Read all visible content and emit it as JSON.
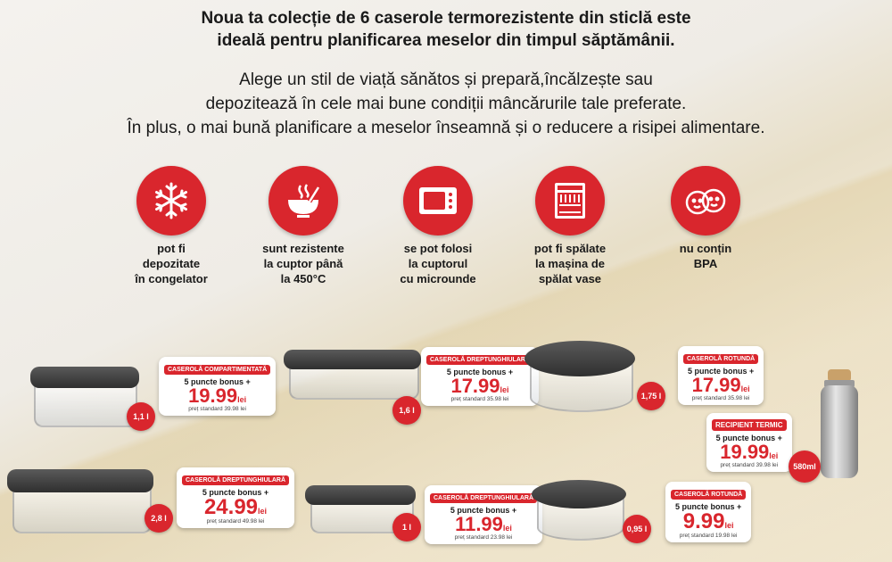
{
  "intro": {
    "line1": "Noua ta colecție de 6 caserole termorezistente din sticlă este",
    "line2": "ideală pentru planificarea meselor din timpul săptămânii.",
    "line3": "Alege un stil de viață sănătos și prepară,încălzește sau",
    "line4": "depozitează în cele mai bune condiții mâncărurile tale preferate.",
    "line5": "În plus, o mai bună planificare a meselor înseamnă și o reducere a risipei alimentare."
  },
  "features": [
    {
      "icon": "snowflake-icon",
      "l1": "pot fi",
      "l2": "depozitate",
      "l3": "în congelator"
    },
    {
      "icon": "bowl-icon",
      "l1": "sunt rezistente",
      "l2": "la cuptor până",
      "l3": "la 450°C"
    },
    {
      "icon": "microwave-icon",
      "l1": "se pot folosi",
      "l2": "la cuptorul",
      "l3": "cu microunde"
    },
    {
      "icon": "dishwasher-icon",
      "l1": "pot fi spălate",
      "l2": "la mașina de",
      "l3": "spălat vase"
    },
    {
      "icon": "baby-faces-icon",
      "l1": "nu conțin",
      "l2": "BPA",
      "l3": ""
    }
  ],
  "products": [
    {
      "name": "CASEROLĂ COMPARTIMENTATĂ",
      "bonus": "5 puncte bonus +",
      "price": "19.99",
      "cur": "lei",
      "std": "preț standard 39.98 lei",
      "vol": "1,1 l"
    },
    {
      "name": "CASEROLĂ DREPTUNGHIULARĂ",
      "bonus": "5 puncte bonus +",
      "price": "17.99",
      "cur": "lei",
      "std": "preț standard 35.98 lei",
      "vol": "1,6 l"
    },
    {
      "name": "CASEROLĂ ROTUNDĂ",
      "bonus": "5 puncte bonus +",
      "price": "17.99",
      "cur": "lei",
      "std": "preț standard 35.98 lei",
      "vol": "1,75 l"
    },
    {
      "name": "RECIPIENT TERMIC",
      "bonus": "5 puncte bonus +",
      "price": "19.99",
      "cur": "lei",
      "std": "preț standard 39.98 lei",
      "vol": "580ml"
    },
    {
      "name": "CASEROLĂ DREPTUNGHIULARĂ",
      "bonus": "5 puncte bonus +",
      "price": "24.99",
      "cur": "lei",
      "std": "preț standard 49.98 lei",
      "vol": "2,8 l"
    },
    {
      "name": "CASEROLĂ DREPTUNGHIULARĂ",
      "bonus": "5 puncte bonus +",
      "price": "11.99",
      "cur": "lei",
      "std": "preț standard 23.98 lei",
      "vol": "1 l"
    },
    {
      "name": "CASEROLĂ ROTUNDĂ",
      "bonus": "5 puncte bonus +",
      "price": "9.99",
      "cur": "lei",
      "std": "preț standard 19.98 lei",
      "vol": "0,95 l"
    }
  ],
  "colors": {
    "accent": "#d9262d",
    "lid": "#3a3a3a"
  }
}
